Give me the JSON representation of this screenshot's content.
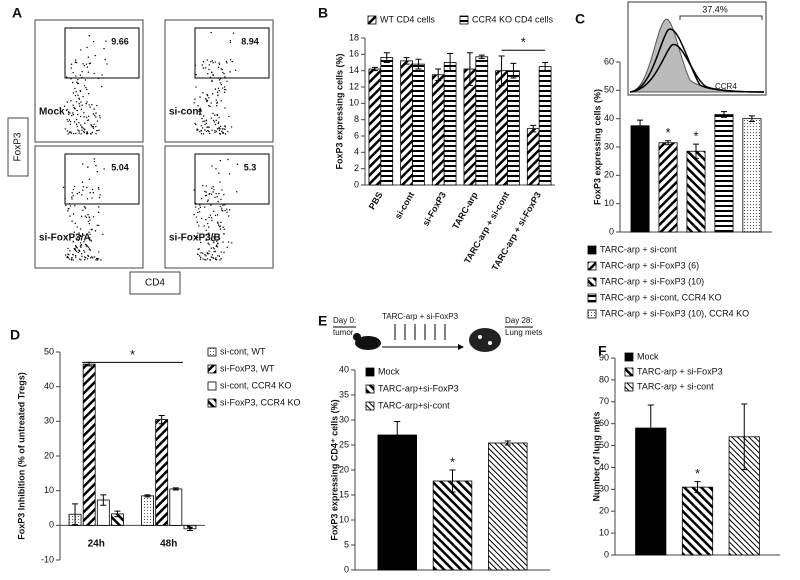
{
  "flow": {
    "label": "A",
    "x_axis": "CD4",
    "y_axis": "FoxP3",
    "plots": [
      {
        "name": "Mock",
        "value": 9.66
      },
      {
        "name": "si-cont",
        "value": 8.94
      },
      {
        "name": "si-FoxP3/A",
        "value": 5.04
      },
      {
        "name": "si-FoxP3/B",
        "value": 5.3
      }
    ]
  },
  "chart_data": [
    {
      "type": "bar",
      "label": "B",
      "ylabel": "FoxP3 expressing cells (%)",
      "categories": [
        "PBS",
        "si-cont",
        "si-FoxP3",
        "TARC-arp",
        "TARC-arp + si-cont",
        "TARC-arp + si-FoxP3"
      ],
      "series": [
        {
          "name": "WT CD4 cells",
          "pattern": "diagonal",
          "values": [
            14.2,
            15.2,
            13.5,
            14.2,
            14.0,
            6.9
          ],
          "errors": [
            0.2,
            0.4,
            0.7,
            2.0,
            1.8,
            0.4
          ]
        },
        {
          "name": "CCR4 KO CD4 cells",
          "pattern": "horizontal",
          "values": [
            15.6,
            14.8,
            15.0,
            15.7,
            14.0,
            14.5
          ],
          "errors": [
            0.6,
            0.6,
            1.1,
            0.2,
            0.9,
            0.5
          ]
        }
      ],
      "ylim": [
        0,
        18
      ],
      "yticks": [
        0,
        2,
        4,
        6,
        8,
        10,
        12,
        14,
        16,
        18
      ],
      "annotation": "*"
    },
    {
      "type": "bar",
      "label": "C",
      "ylabel": "FoxP3 expressing cells (%)",
      "categories": [
        null
      ],
      "inset": {
        "gate_label": "37.4%",
        "x_label": "CCR4"
      },
      "series": [
        {
          "name": "TARC-arp + si-cont",
          "pattern": "solid",
          "values": [
            37.5
          ],
          "errors": [
            2.0
          ]
        },
        {
          "name": "TARC-arp + si-FoxP3 (6)",
          "pattern": "diagonal",
          "values": [
            31.5
          ],
          "errors": [
            0.7
          ],
          "marker": "*"
        },
        {
          "name": "TARC-arp + si-FoxP3 (10)",
          "pattern": "back-diagonal",
          "values": [
            28.5
          ],
          "errors": [
            2.5
          ],
          "marker": "*"
        },
        {
          "name": "TARC-arp + si-cont, CCR4 KO",
          "pattern": "horizontal",
          "values": [
            41.5
          ],
          "errors": [
            1.0
          ]
        },
        {
          "name": "TARC-arp + si-FoxP3 (10), CCR4 KO",
          "pattern": "dotted",
          "values": [
            40.0
          ],
          "errors": [
            1.0
          ]
        }
      ],
      "ylim": [
        0,
        60
      ],
      "yticks": [
        0,
        10,
        20,
        30,
        40,
        50,
        60
      ]
    },
    {
      "type": "bar",
      "label": "D",
      "ylabel": "FoxP3 Inhibition (% of untreated Tregs)",
      "categories": [
        "24h",
        "48h"
      ],
      "series": [
        {
          "name": "si-cont, WT",
          "pattern": "dotted",
          "values": [
            3.2,
            8.5
          ],
          "errors": [
            3.0,
            0.3
          ]
        },
        {
          "name": "si-FoxP3, WT",
          "pattern": "diagonal",
          "values": [
            46.5,
            30.5
          ],
          "errors": [
            0.5,
            1.2
          ]
        },
        {
          "name": "si-cont, CCR4 KO",
          "pattern": "white",
          "values": [
            7.3,
            10.5
          ],
          "errors": [
            1.5,
            0.3
          ]
        },
        {
          "name": "si-FoxP3, CCR4 KO",
          "pattern": "back-diagonal",
          "values": [
            3.3,
            -1.0
          ],
          "errors": [
            0.8,
            0.5
          ]
        }
      ],
      "ylim": [
        -10,
        50
      ],
      "yticks": [
        -10,
        0,
        10,
        20,
        30,
        40,
        50
      ],
      "annotation": "*"
    },
    {
      "type": "bar",
      "label": "E",
      "ylabel": "FoxP3 expressing CD4⁺ cells (%)",
      "categories": [
        null
      ],
      "schematic": {
        "day0": "Day 0:",
        "tumor": "tumor",
        "treatment": "TARC-arp + si-FoxP3",
        "day28": "Day 28:",
        "mets": "Lung mets"
      },
      "series": [
        {
          "name": "Mock",
          "pattern": "solid",
          "values": [
            27.0
          ],
          "errors": [
            2.7
          ]
        },
        {
          "name": "TARC-arp+si-FoxP3",
          "pattern": "back-diagonal",
          "values": [
            17.8
          ],
          "errors": [
            2.2
          ],
          "marker": "*"
        },
        {
          "name": "TARC-arp+si-cont",
          "pattern": "diagonal-thin",
          "values": [
            25.4
          ],
          "errors": [
            0.4
          ]
        }
      ],
      "ylim": [
        0,
        40
      ],
      "yticks": [
        0,
        5,
        10,
        15,
        20,
        25,
        30,
        35,
        40
      ]
    },
    {
      "type": "bar",
      "label": "F",
      "ylabel": "Number of lung mets",
      "categories": [
        null
      ],
      "series": [
        {
          "name": "Mock",
          "pattern": "solid",
          "values": [
            58
          ],
          "errors": [
            10.5
          ]
        },
        {
          "name": "TARC-arp + si-FoxP3",
          "pattern": "back-diagonal",
          "values": [
            31
          ],
          "errors": [
            2.5
          ],
          "marker": "*"
        },
        {
          "name": "TARC-arp + si-cont",
          "pattern": "diagonal-thin",
          "values": [
            54
          ],
          "errors": [
            15
          ]
        }
      ],
      "ylim": [
        0,
        90
      ],
      "yticks": [
        0,
        10,
        20,
        30,
        40,
        50,
        60,
        70,
        80,
        90
      ]
    }
  ]
}
